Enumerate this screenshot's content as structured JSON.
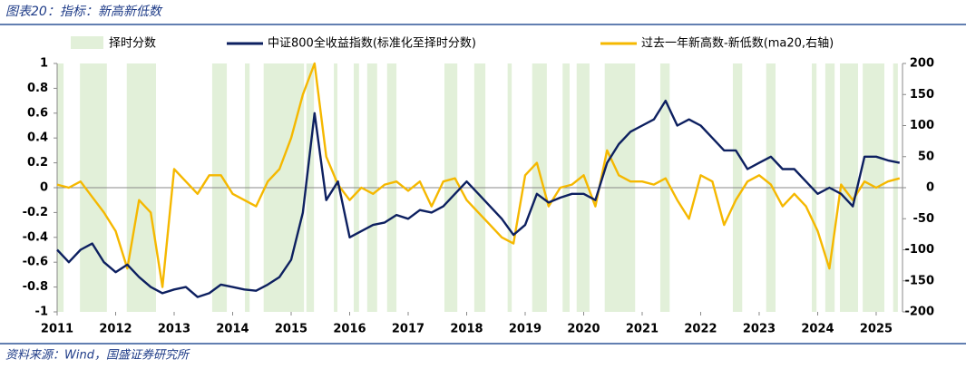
{
  "header": {
    "title": "图表20：指标：新高新低数"
  },
  "chart_data": {
    "type": "line",
    "x": [
      2011.0,
      2011.2,
      2011.4,
      2011.6,
      2011.8,
      2012.0,
      2012.2,
      2012.4,
      2012.6,
      2012.8,
      2013.0,
      2013.2,
      2013.4,
      2013.6,
      2013.8,
      2014.0,
      2014.2,
      2014.4,
      2014.6,
      2014.8,
      2015.0,
      2015.2,
      2015.4,
      2015.6,
      2015.8,
      2016.0,
      2016.2,
      2016.4,
      2016.6,
      2016.8,
      2017.0,
      2017.2,
      2017.4,
      2017.6,
      2017.8,
      2018.0,
      2018.2,
      2018.4,
      2018.6,
      2018.8,
      2019.0,
      2019.2,
      2019.4,
      2019.6,
      2019.8,
      2020.0,
      2020.2,
      2020.4,
      2020.6,
      2020.8,
      2021.0,
      2021.2,
      2021.4,
      2021.6,
      2021.8,
      2022.0,
      2022.2,
      2022.4,
      2022.6,
      2022.8,
      2023.0,
      2023.2,
      2023.4,
      2023.6,
      2023.8,
      2024.0,
      2024.2,
      2024.4,
      2024.6,
      2024.8,
      2025.0,
      2025.2,
      2025.4
    ],
    "series": [
      {
        "name": "择时分数",
        "color": "#e2f0d9",
        "periods": [
          [
            2011.0,
            2011.11
          ],
          [
            2011.39,
            2011.85
          ],
          [
            2012.19,
            2012.69
          ],
          [
            2013.65,
            2013.9
          ],
          [
            2014.21,
            2014.29
          ],
          [
            2014.53,
            2015.22
          ],
          [
            2015.26,
            2015.39
          ],
          [
            2015.73,
            2015.79
          ],
          [
            2016.07,
            2016.16
          ],
          [
            2016.3,
            2016.47
          ],
          [
            2016.64,
            2016.8
          ],
          [
            2017.62,
            2017.84
          ],
          [
            2018.13,
            2018.32
          ],
          [
            2018.7,
            2018.77
          ],
          [
            2019.12,
            2019.37
          ],
          [
            2019.64,
            2019.76
          ],
          [
            2019.88,
            2020.1
          ],
          [
            2020.36,
            2020.88
          ],
          [
            2021.31,
            2021.47
          ],
          [
            2022.55,
            2022.71
          ],
          [
            2023.12,
            2023.28
          ],
          [
            2023.9,
            2023.98
          ],
          [
            2024.13,
            2024.29
          ],
          [
            2024.38,
            2024.69
          ],
          [
            2024.77,
            2025.14
          ],
          [
            2025.29,
            2025.37
          ]
        ]
      },
      {
        "name": "中证800全收益指数(标准化至择时分数)",
        "color": "#0d2060",
        "axis": "y",
        "values": [
          -0.5,
          -0.6,
          -0.5,
          -0.45,
          -0.6,
          -0.68,
          -0.62,
          -0.72,
          -0.8,
          -0.85,
          -0.82,
          -0.8,
          -0.88,
          -0.85,
          -0.78,
          -0.8,
          -0.82,
          -0.83,
          -0.78,
          -0.72,
          -0.58,
          -0.2,
          0.6,
          -0.1,
          0.05,
          -0.4,
          -0.35,
          -0.3,
          -0.28,
          -0.22,
          -0.25,
          -0.18,
          -0.2,
          -0.15,
          -0.05,
          0.05,
          -0.05,
          -0.15,
          -0.25,
          -0.38,
          -0.3,
          -0.05,
          -0.12,
          -0.08,
          -0.05,
          -0.05,
          -0.1,
          0.2,
          0.35,
          0.45,
          0.5,
          0.55,
          0.7,
          0.5,
          0.55,
          0.5,
          0.4,
          0.3,
          0.3,
          0.15,
          0.2,
          0.25,
          0.15,
          0.15,
          0.05,
          -0.05,
          0.0,
          -0.05,
          -0.15,
          0.25,
          0.25,
          0.22,
          0.2
        ]
      },
      {
        "name": "过去一年新高数-新低数(ma20,右轴)",
        "color": "#f5b800",
        "axis": "y2",
        "values": [
          5,
          0,
          10,
          -15,
          -40,
          -70,
          -130,
          -20,
          -40,
          -160,
          30,
          10,
          -10,
          20,
          20,
          -10,
          -20,
          -30,
          10,
          30,
          80,
          150,
          200,
          50,
          5,
          -20,
          0,
          -10,
          5,
          10,
          -5,
          10,
          -30,
          10,
          15,
          -20,
          -40,
          -60,
          -80,
          -90,
          20,
          40,
          -30,
          0,
          5,
          20,
          -30,
          60,
          20,
          10,
          10,
          5,
          15,
          -20,
          -50,
          20,
          10,
          -60,
          -20,
          10,
          20,
          5,
          -30,
          -10,
          -30,
          -70,
          -130,
          5,
          -20,
          10,
          0,
          10,
          15
        ]
      }
    ],
    "xlim": [
      2011,
      2025.45
    ],
    "xticks": [
      2011,
      2012,
      2013,
      2014,
      2015,
      2016,
      2017,
      2018,
      2019,
      2020,
      2021,
      2022,
      2023,
      2024,
      2025
    ],
    "ylim": [
      -1,
      1
    ],
    "yticks": [
      1,
      0.8,
      0.6,
      0.4,
      0.2,
      0,
      -0.2,
      -0.4,
      -0.6,
      -0.8,
      -1
    ],
    "y2lim": [
      -200,
      200
    ],
    "y2ticks": [
      200,
      150,
      100,
      50,
      0,
      -50,
      -100,
      -150,
      -200
    ]
  },
  "footer": {
    "source": "资料来源：Wind，国盛证券研究所"
  }
}
